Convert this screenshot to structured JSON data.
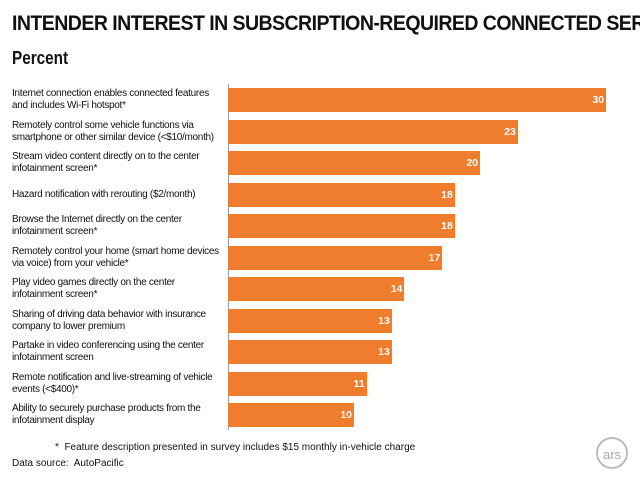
{
  "chart_data": {
    "type": "bar",
    "orientation": "horizontal",
    "title": "INTENDER INTEREST IN SUBSCRIPTION-REQUIRED CONNECTED SERVICES",
    "subtitle": "Percent",
    "categories": [
      "Internet connection enables connected features and includes Wi-Fi hotspot*",
      "Remotely control some vehicle functions via smartphone or other similar device (<$10/month)",
      "Stream video content directly on to the center infotainment screen*",
      "Hazard notification with rerouting ($2/month)",
      "Browse the Internet directly on the center infotainment screen*",
      "Remotely control your home (smart home devices via voice) from your vehicle*",
      "Play video games directly on the center infotainment screen*",
      "Sharing of driving data behavior with insurance company to lower premium",
      "Partake in video conferencing using the center infotainment screen",
      "Remote notification and live-streaming of vehicle events (<$400)*",
      "Ability to securely purchase products from the infotainment display"
    ],
    "values": [
      30,
      23,
      20,
      18,
      18,
      17,
      14,
      13,
      13,
      11,
      10
    ],
    "color": "#f07c2e",
    "footnote": "*  Feature description presented in survey includes $15 monthly in-vehicle charge",
    "source": "Data source:  AutoPacific",
    "logo": "ars"
  }
}
